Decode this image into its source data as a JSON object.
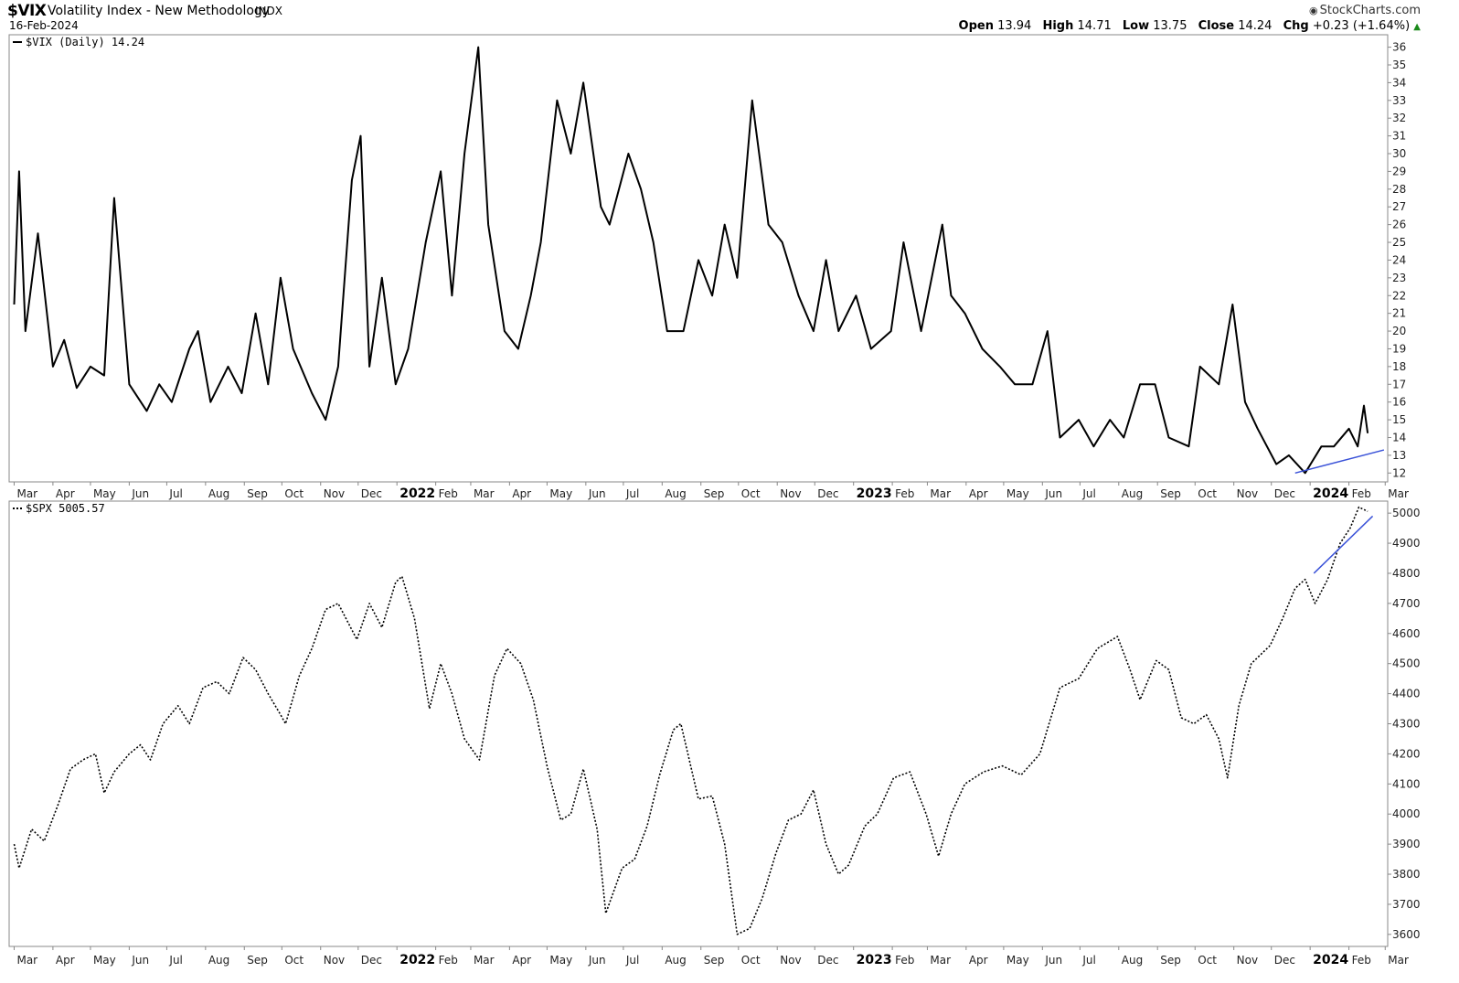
{
  "header": {
    "symbol": "$VIX",
    "name": "Volatility Index - New Methodology",
    "exchange": "INDX",
    "date": "16-Feb-2024",
    "brand": "StockCharts.com",
    "brand_icon": "copyright-icon",
    "ohlc": {
      "open_label": "Open",
      "open": "13.94",
      "high_label": "High",
      "high": "14.71",
      "low_label": "Low",
      "low": "13.75",
      "close_label": "Close",
      "close": "14.24",
      "chg_label": "Chg",
      "chg": "+0.23 (+1.64%)",
      "chg_icon": "triangle-up-icon"
    }
  },
  "colors": {
    "line": "#000000",
    "trendline": "#3a52d8",
    "grid": "#e6e6e6",
    "axis": "#888888",
    "up": "#1a8a1a"
  },
  "x_axis_labels": [
    "Mar",
    "Apr",
    "May",
    "Jun",
    "Jul",
    "Aug",
    "Sep",
    "Oct",
    "Nov",
    "Dec",
    "2022",
    "Feb",
    "Mar",
    "Apr",
    "May",
    "Jun",
    "Jul",
    "Aug",
    "Sep",
    "Oct",
    "Nov",
    "Dec",
    "2023",
    "Feb",
    "Mar",
    "Apr",
    "May",
    "Jun",
    "Jul",
    "Aug",
    "Sep",
    "Oct",
    "Nov",
    "Dec",
    "2024",
    "Feb",
    "Mar"
  ],
  "chart_data": [
    {
      "type": "line",
      "legend": "$VIX (Daily) 14.24",
      "series": [
        {
          "name": "$VIX",
          "style": "solid",
          "x": [
            "2021-03-01",
            "2021-03-05",
            "2021-03-10",
            "2021-03-20",
            "2021-04-01",
            "2021-04-10",
            "2021-04-20",
            "2021-05-01",
            "2021-05-12",
            "2021-05-20",
            "2021-06-01",
            "2021-06-15",
            "2021-06-25",
            "2021-07-05",
            "2021-07-19",
            "2021-07-26",
            "2021-08-05",
            "2021-08-19",
            "2021-08-30",
            "2021-09-10",
            "2021-09-20",
            "2021-09-30",
            "2021-10-10",
            "2021-10-25",
            "2021-11-05",
            "2021-11-15",
            "2021-11-26",
            "2021-12-03",
            "2021-12-10",
            "2021-12-20",
            "2021-12-31",
            "2022-01-10",
            "2022-01-24",
            "2022-02-05",
            "2022-02-14",
            "2022-02-24",
            "2022-03-07",
            "2022-03-15",
            "2022-03-28",
            "2022-04-08",
            "2022-04-18",
            "2022-04-26",
            "2022-05-09",
            "2022-05-20",
            "2022-05-30",
            "2022-06-13",
            "2022-06-20",
            "2022-07-05",
            "2022-07-15",
            "2022-07-25",
            "2022-08-05",
            "2022-08-18",
            "2022-08-30",
            "2022-09-10",
            "2022-09-20",
            "2022-09-30",
            "2022-10-12",
            "2022-10-25",
            "2022-11-05",
            "2022-11-18",
            "2022-11-30",
            "2022-12-10",
            "2022-12-20",
            "2023-01-03",
            "2023-01-15",
            "2023-01-31",
            "2023-02-10",
            "2023-02-24",
            "2023-03-13",
            "2023-03-20",
            "2023-03-31",
            "2023-04-14",
            "2023-04-28",
            "2023-05-10",
            "2023-05-24",
            "2023-06-05",
            "2023-06-15",
            "2023-06-30",
            "2023-07-12",
            "2023-07-25",
            "2023-08-05",
            "2023-08-18",
            "2023-08-30",
            "2023-09-10",
            "2023-09-26",
            "2023-10-05",
            "2023-10-20",
            "2023-10-31",
            "2023-11-10",
            "2023-11-20",
            "2023-12-05",
            "2023-12-15",
            "2023-12-28",
            "2024-01-10",
            "2024-01-20",
            "2024-02-01",
            "2024-02-08",
            "2024-02-13",
            "2024-02-16"
          ],
          "y": [
            21.5,
            29,
            20,
            25.5,
            18,
            19.5,
            16.8,
            18,
            17.5,
            27.5,
            17,
            15.5,
            17,
            16,
            19,
            20,
            16,
            18,
            16.5,
            21,
            17,
            23,
            19,
            16.5,
            15,
            18,
            28.5,
            31,
            18,
            23,
            17,
            19,
            25,
            29,
            22,
            30,
            36,
            26,
            20,
            19,
            22,
            25,
            33,
            30,
            34,
            27,
            26,
            30,
            28,
            25,
            20,
            20,
            24,
            22,
            26,
            23,
            33,
            26,
            25,
            22,
            20,
            24,
            20,
            22,
            19,
            20,
            25,
            20,
            26,
            22,
            21,
            19,
            18,
            17,
            17,
            20,
            14,
            15,
            13.5,
            15,
            14,
            17,
            17,
            14,
            13.5,
            18,
            17,
            21.5,
            16,
            14.5,
            12.5,
            13,
            12,
            13.5,
            13.5,
            14.5,
            13.5,
            15.8,
            14.24
          ],
          "trendline": {
            "from": [
              "2023-12-20",
              12.0
            ],
            "to": [
              "2024-02-29",
              13.3
            ]
          }
        }
      ],
      "y_ticks": [
        12,
        13,
        14,
        15,
        16,
        17,
        18,
        19,
        20,
        21,
        22,
        23,
        24,
        25,
        26,
        27,
        28,
        29,
        30,
        31,
        32,
        33,
        34,
        35,
        36
      ],
      "ylim": [
        11.5,
        36.7
      ],
      "xlim": [
        "2021-02-25",
        "2024-03-03"
      ]
    },
    {
      "type": "line",
      "legend": "$SPX 5005.57",
      "series": [
        {
          "name": "$SPX",
          "style": "dotted",
          "x": [
            "2021-03-01",
            "2021-03-05",
            "2021-03-15",
            "2021-03-25",
            "2021-04-05",
            "2021-04-15",
            "2021-04-25",
            "2021-05-05",
            "2021-05-12",
            "2021-05-20",
            "2021-06-01",
            "2021-06-10",
            "2021-06-18",
            "2021-06-28",
            "2021-07-10",
            "2021-07-19",
            "2021-07-30",
            "2021-08-10",
            "2021-08-20",
            "2021-08-31",
            "2021-09-10",
            "2021-09-20",
            "2021-09-30",
            "2021-10-04",
            "2021-10-15",
            "2021-10-25",
            "2021-11-05",
            "2021-11-15",
            "2021-11-30",
            "2021-12-10",
            "2021-12-20",
            "2021-12-31",
            "2022-01-05",
            "2022-01-15",
            "2022-01-27",
            "2022-02-05",
            "2022-02-14",
            "2022-02-24",
            "2022-03-08",
            "2022-03-20",
            "2022-03-30",
            "2022-04-10",
            "2022-04-20",
            "2022-05-01",
            "2022-05-12",
            "2022-05-20",
            "2022-05-30",
            "2022-06-10",
            "2022-06-17",
            "2022-06-30",
            "2022-07-10",
            "2022-07-20",
            "2022-07-30",
            "2022-08-10",
            "2022-08-16",
            "2022-08-30",
            "2022-09-10",
            "2022-09-20",
            "2022-09-30",
            "2022-10-10",
            "2022-10-20",
            "2022-10-31",
            "2022-11-10",
            "2022-11-20",
            "2022-11-30",
            "2022-12-10",
            "2022-12-20",
            "2022-12-28",
            "2023-01-10",
            "2023-01-20",
            "2023-02-02",
            "2023-02-15",
            "2023-02-28",
            "2023-03-10",
            "2023-03-20",
            "2023-03-31",
            "2023-04-15",
            "2023-04-30",
            "2023-05-15",
            "2023-05-30",
            "2023-06-15",
            "2023-06-30",
            "2023-07-15",
            "2023-07-31",
            "2023-08-10",
            "2023-08-18",
            "2023-08-31",
            "2023-09-10",
            "2023-09-20",
            "2023-09-30",
            "2023-10-10",
            "2023-10-20",
            "2023-10-27",
            "2023-11-05",
            "2023-11-15",
            "2023-11-30",
            "2023-12-10",
            "2023-12-20",
            "2023-12-28",
            "2024-01-05",
            "2024-01-15",
            "2024-01-25",
            "2024-02-02",
            "2024-02-09",
            "2024-02-16"
          ],
          "y": [
            3900,
            3820,
            3950,
            3910,
            4030,
            4150,
            4180,
            4200,
            4070,
            4140,
            4200,
            4230,
            4180,
            4300,
            4360,
            4300,
            4420,
            4440,
            4400,
            4520,
            4480,
            4400,
            4330,
            4300,
            4460,
            4550,
            4680,
            4700,
            4580,
            4700,
            4620,
            4770,
            4790,
            4650,
            4350,
            4500,
            4400,
            4250,
            4180,
            4460,
            4550,
            4500,
            4380,
            4160,
            3980,
            4000,
            4150,
            3950,
            3670,
            3820,
            3850,
            3960,
            4130,
            4280,
            4300,
            4050,
            4060,
            3900,
            3600,
            3620,
            3720,
            3870,
            3980,
            4000,
            4080,
            3900,
            3800,
            3830,
            3960,
            4000,
            4120,
            4140,
            4000,
            3860,
            4000,
            4100,
            4140,
            4160,
            4130,
            4200,
            4420,
            4450,
            4550,
            4590,
            4480,
            4380,
            4510,
            4480,
            4320,
            4300,
            4330,
            4250,
            4120,
            4360,
            4500,
            4560,
            4650,
            4750,
            4780,
            4700,
            4780,
            4900,
            4950,
            5020,
            5005.57
          ],
          "trendline": {
            "from": [
              "2024-01-04",
              4800
            ],
            "to": [
              "2024-02-20",
              4990
            ]
          }
        }
      ],
      "y_ticks": [
        3600,
        3700,
        3800,
        3900,
        4000,
        4100,
        4200,
        4300,
        4400,
        4500,
        4600,
        4700,
        4800,
        4900,
        5000
      ],
      "ylim": [
        3560,
        5040
      ],
      "xlim": [
        "2021-02-25",
        "2024-03-03"
      ]
    }
  ]
}
